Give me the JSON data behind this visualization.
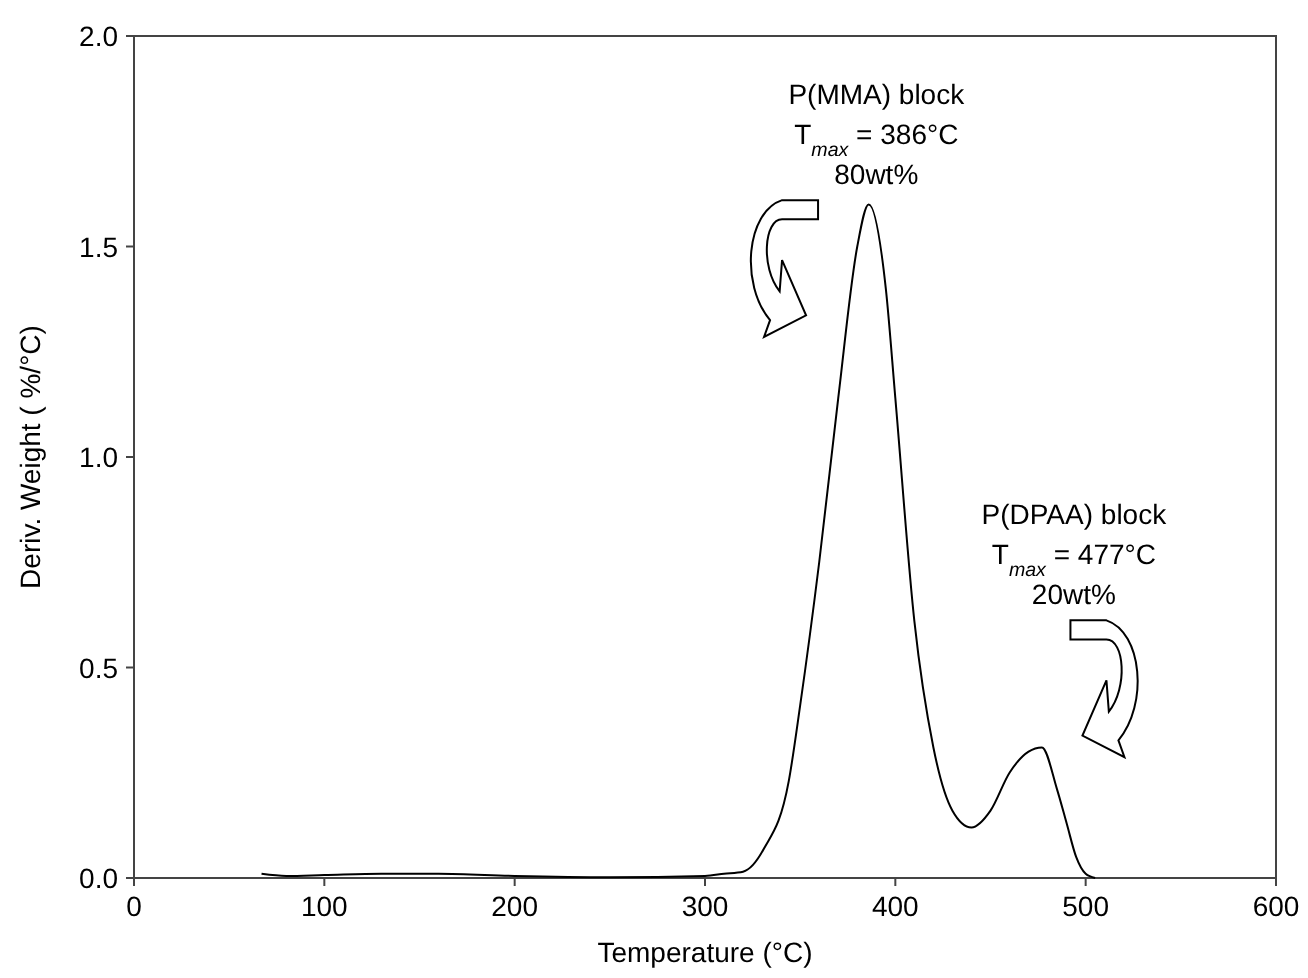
{
  "chart_data": {
    "type": "line",
    "xlabel": "Temperature (°C)",
    "ylabel": "Deriv. Weight ( %/°C)",
    "xlim": [
      0,
      600
    ],
    "xticks": [
      0,
      100,
      200,
      300,
      400,
      500,
      600
    ],
    "ylim": [
      0,
      2
    ],
    "yticks": [
      {
        "value": 0,
        "label": "0.0"
      },
      {
        "value": 0.5,
        "label": "0.5"
      },
      {
        "value": 1,
        "label": "1.0"
      },
      {
        "value": 1.5,
        "label": "1.5"
      },
      {
        "value": 2,
        "label": "2.0"
      }
    ],
    "grid": false,
    "marker": "none",
    "line_style": "solid",
    "series": [
      {
        "color": "#000000",
        "x": [
          67,
          80,
          100,
          130,
          160,
          200,
          250,
          300,
          310,
          320,
          331,
          344,
          350,
          360,
          370,
          380,
          386,
          395,
          400,
          410,
          420,
          430,
          440,
          450,
          460,
          470,
          477,
          485,
          490,
          495,
          500,
          505
        ],
        "values": [
          0.01,
          0.005,
          0.007,
          0.01,
          0.01,
          0.005,
          0.002,
          0.005,
          0.01,
          0.015,
          0.07,
          0.23,
          0.41,
          0.75,
          1.14,
          1.5,
          1.6,
          1.4,
          1.14,
          0.61,
          0.31,
          0.16,
          0.12,
          0.16,
          0.25,
          0.3,
          0.31,
          0.21,
          0.13,
          0.05,
          0.01,
          0
        ]
      }
    ],
    "annotations": [
      "P(MMA) block\nT$_{max}$ = 386°C\n80wt%",
      "P(DPAA) block\nT$_{max}$ = 477°C\n20wt%"
    ]
  }
}
